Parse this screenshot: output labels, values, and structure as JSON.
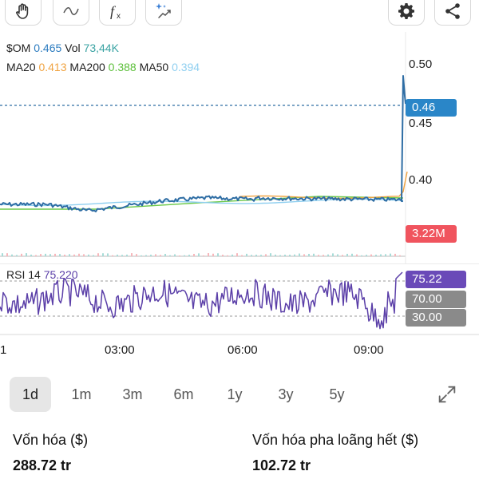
{
  "toolbar": {
    "left_tools": [
      {
        "name": "hand-icon"
      },
      {
        "name": "line-tool-icon"
      },
      {
        "name": "function-icon"
      },
      {
        "name": "sparkle-trend-icon"
      }
    ],
    "right_tools": [
      {
        "name": "gear-icon"
      },
      {
        "name": "share-icon"
      }
    ]
  },
  "legend": {
    "ticker_label": "$OM",
    "price": "0.465",
    "vol_label": "Vol",
    "vol_value": "73,44K",
    "ma20_label": "MA20",
    "ma20_value": "0.413",
    "ma200_label": "MA200",
    "ma200_value": "0.388",
    "ma50_label": "MA50",
    "ma50_value": "0.394"
  },
  "rsi": {
    "label": "RSI 14",
    "value": "75.220",
    "tag": "75.22",
    "upper": "70.00",
    "lower": "30.00"
  },
  "price_axis": [
    "0.50",
    "0.45",
    "0.40"
  ],
  "price_tag": "0.46",
  "volume_tag": "3.22M",
  "time_axis": [
    "1",
    "03:00",
    "06:00",
    "09:00"
  ],
  "periods": [
    "1d",
    "1m",
    "3m",
    "6m",
    "1y",
    "3y",
    "5y"
  ],
  "active_period": "1d",
  "stats": {
    "market_cap_label": "Vốn hóa ($)",
    "market_cap_value": "288.72 tr",
    "fdv_label": "Vốn hóa pha loãng hết ($)",
    "fdv_value": "102.72 tr"
  },
  "colors": {
    "price_line": "#2e6da4",
    "ma20": "#f0a341",
    "ma200": "#6cc94a",
    "ma50": "#8fcff0",
    "rsi": "#5b3fa8",
    "rsi_tag": "#6a4ab8",
    "price_tag": "#2a86c8",
    "volume_tag": "#f0545e",
    "level_tag": "#8a8a8a",
    "vol_text": "#3aa3a3"
  }
}
